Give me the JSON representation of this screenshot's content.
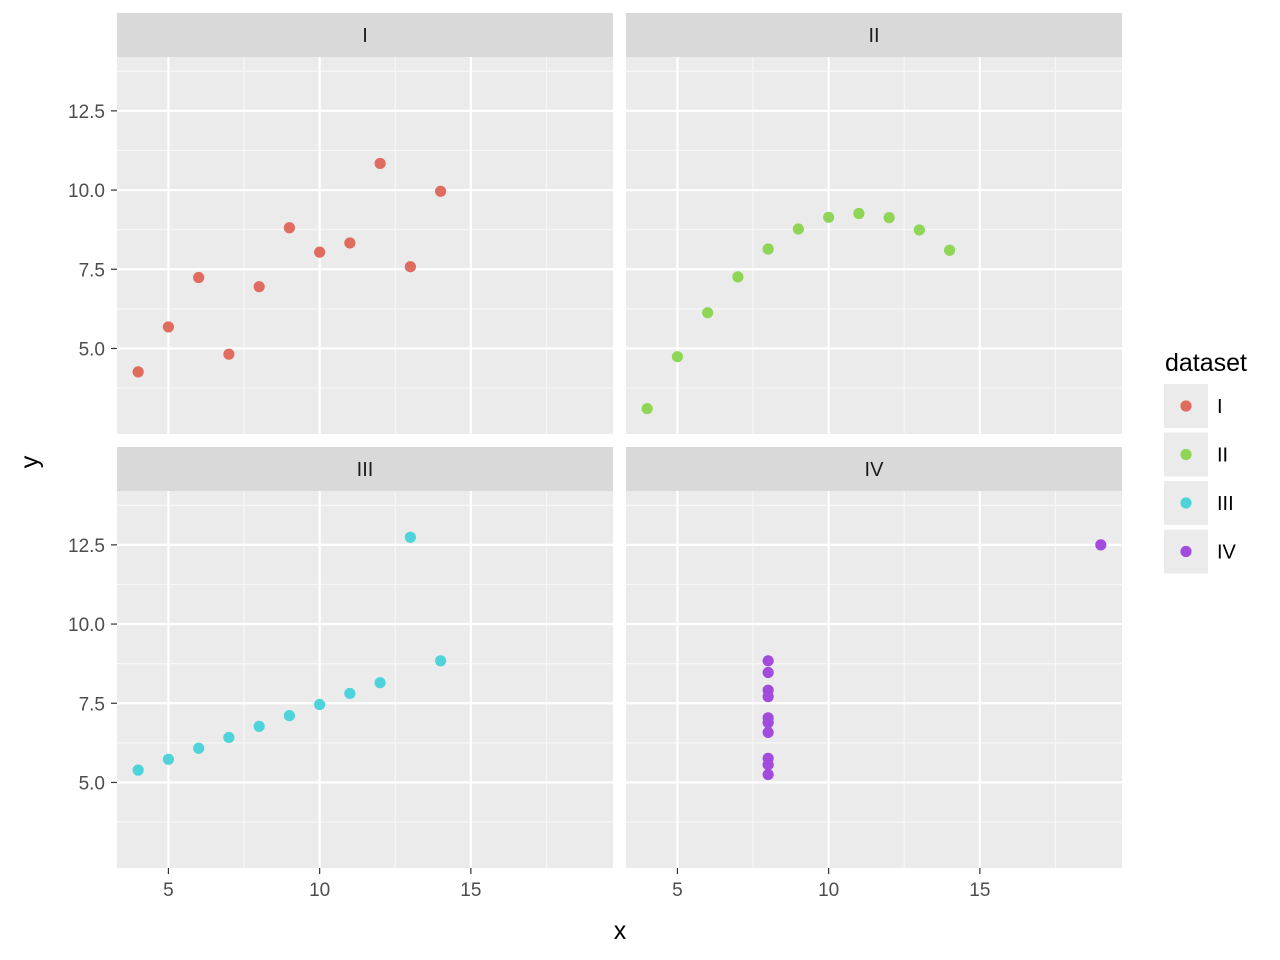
{
  "chart_data": {
    "type": "scatter",
    "xlabel": "x",
    "ylabel": "y",
    "xlim": [
      3.3,
      19.7
    ],
    "ylim": [
      2.3,
      14.2
    ],
    "x_ticks": [
      5,
      10,
      15
    ],
    "x_tick_labels": [
      "5",
      "10",
      "15"
    ],
    "y_ticks": [
      5,
      7.5,
      10,
      12.5
    ],
    "y_tick_labels": [
      "5.0",
      "7.5",
      "10.0",
      "12.5"
    ],
    "grid": true,
    "legend": {
      "title": "dataset",
      "position": "right",
      "entries": [
        "I",
        "II",
        "III",
        "IV"
      ]
    },
    "facets": [
      {
        "label": "I",
        "color": "#E06B5F",
        "points": [
          [
            10,
            8.04
          ],
          [
            8,
            6.95
          ],
          [
            13,
            7.58
          ],
          [
            9,
            8.81
          ],
          [
            11,
            8.33
          ],
          [
            14,
            9.96
          ],
          [
            6,
            7.24
          ],
          [
            4,
            4.26
          ],
          [
            12,
            10.84
          ],
          [
            7,
            4.82
          ],
          [
            5,
            5.68
          ]
        ]
      },
      {
        "label": "II",
        "color": "#8FD657",
        "points": [
          [
            10,
            9.14
          ],
          [
            8,
            8.14
          ],
          [
            13,
            8.74
          ],
          [
            9,
            8.77
          ],
          [
            11,
            9.26
          ],
          [
            14,
            8.1
          ],
          [
            6,
            6.13
          ],
          [
            4,
            3.1
          ],
          [
            12,
            9.13
          ],
          [
            7,
            7.26
          ],
          [
            5,
            4.74
          ]
        ]
      },
      {
        "label": "III",
        "color": "#4FD3DA",
        "points": [
          [
            10,
            7.46
          ],
          [
            8,
            6.77
          ],
          [
            13,
            12.74
          ],
          [
            9,
            7.11
          ],
          [
            11,
            7.81
          ],
          [
            14,
            8.84
          ],
          [
            6,
            6.08
          ],
          [
            4,
            5.39
          ],
          [
            12,
            8.15
          ],
          [
            7,
            6.42
          ],
          [
            5,
            5.73
          ]
        ]
      },
      {
        "label": "IV",
        "color": "#A24CDE",
        "points": [
          [
            8,
            6.58
          ],
          [
            8,
            5.76
          ],
          [
            8,
            7.71
          ],
          [
            8,
            8.84
          ],
          [
            8,
            8.47
          ],
          [
            8,
            7.04
          ],
          [
            8,
            5.25
          ],
          [
            19,
            12.5
          ],
          [
            8,
            5.56
          ],
          [
            8,
            7.91
          ],
          [
            8,
            6.89
          ]
        ]
      }
    ]
  }
}
